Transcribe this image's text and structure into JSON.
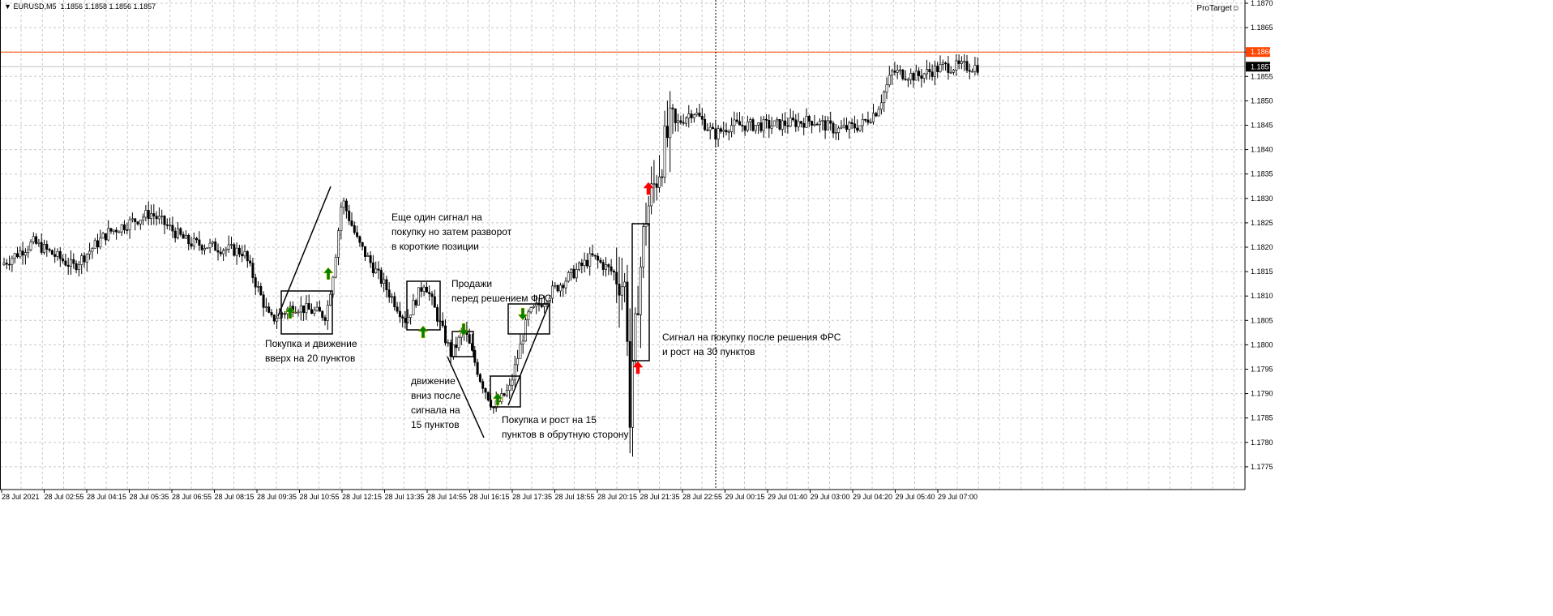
{
  "window": {
    "title": "EURUSD,M5",
    "ohlc": "1.1856 1.1858 1.1856 1.1857",
    "indicator_label": "ProTarget",
    "indicator_icon": "smiley-icon"
  },
  "chart_data": {
    "type": "candlestick",
    "symbol": "EURUSD",
    "timeframe": "M5",
    "ylim": [
      1.1772,
      1.1871
    ],
    "grid": true,
    "y_ticks": [
      "1.1870",
      "1.1865",
      "1.1860",
      "1.1855",
      "1.1850",
      "1.1845",
      "1.1840",
      "1.1835",
      "1.1830",
      "1.1825",
      "1.1820",
      "1.1815",
      "1.1810",
      "1.1805",
      "1.1800",
      "1.1795",
      "1.1790",
      "1.1785",
      "1.1780",
      "1.1775"
    ],
    "x_ticks": [
      "28 Jul 2021",
      "28 Jul 02:55",
      "28 Jul 04:15",
      "28 Jul 05:35",
      "28 Jul 06:55",
      "28 Jul 08:15",
      "28 Jul 09:35",
      "28 Jul 10:55",
      "28 Jul 12:15",
      "28 Jul 13:35",
      "28 Jul 14:55",
      "28 Jul 16:15",
      "28 Jul 17:35",
      "28 Jul 18:55",
      "28 Jul 20:15",
      "28 Jul 21:35",
      "28 Jul 22:55",
      "29 Jul 00:15",
      "29 Jul 01:40",
      "29 Jul 03:00",
      "29 Jul 04:20",
      "29 Jul 05:40",
      "29 Jul 07:00"
    ],
    "price_lines": [
      {
        "label": "1.1860",
        "value": 1.186,
        "color": "#ff4500"
      },
      {
        "label": "1.1857",
        "value": 1.1857,
        "color": "#c0c0c0"
      }
    ],
    "approx_close": [
      {
        "time": "28 Jul 00:00",
        "price": 1.18164
      },
      {
        "time": "28 Jul 02:10",
        "price": 1.1821
      },
      {
        "time": "28 Jul 03:50",
        "price": 1.1816
      },
      {
        "time": "28 Jul 04:55",
        "price": 1.1823
      },
      {
        "time": "28 Jul 06:15",
        "price": 1.1827
      },
      {
        "time": "28 Jul 07:25",
        "price": 1.1821
      },
      {
        "time": "28 Jul 09:10",
        "price": 1.1819
      },
      {
        "time": "28 Jul 10:00",
        "price": 1.1805
      },
      {
        "time": "28 Jul 10:45",
        "price": 1.1808
      },
      {
        "time": "28 Jul 11:45",
        "price": 1.1806
      },
      {
        "time": "28 Jul 12:00",
        "price": 1.1816
      },
      {
        "time": "28 Jul 12:15",
        "price": 1.183
      },
      {
        "time": "28 Jul 12:45",
        "price": 1.1821
      },
      {
        "time": "28 Jul 13:30",
        "price": 1.1813
      },
      {
        "time": "28 Jul 14:15",
        "price": 1.1805
      },
      {
        "time": "28 Jul 14:50",
        "price": 1.1813
      },
      {
        "time": "28 Jul 15:20",
        "price": 1.1804
      },
      {
        "time": "28 Jul 15:40",
        "price": 1.1798
      },
      {
        "time": "28 Jul 16:05",
        "price": 1.1803
      },
      {
        "time": "28 Jul 16:35",
        "price": 1.1793
      },
      {
        "time": "28 Jul 17:00",
        "price": 1.1787
      },
      {
        "time": "28 Jul 17:30",
        "price": 1.1791
      },
      {
        "time": "28 Jul 18:05",
        "price": 1.1806
      },
      {
        "time": "28 Jul 18:50",
        "price": 1.1811
      },
      {
        "time": "28 Jul 20:05",
        "price": 1.1818
      },
      {
        "time": "28 Jul 20:55",
        "price": 1.1814
      },
      {
        "time": "28 Jul 21:10",
        "price": 1.1811
      },
      {
        "time": "28 Jul 21:15",
        "price": 1.1781
      },
      {
        "time": "28 Jul 21:30",
        "price": 1.1809
      },
      {
        "time": "28 Jul 21:45",
        "price": 1.1826
      },
      {
        "time": "28 Jul 22:10",
        "price": 1.1836
      },
      {
        "time": "28 Jul 22:30",
        "price": 1.1844
      },
      {
        "time": "28 Jul 23:15",
        "price": 1.1848
      },
      {
        "time": "28 Jul 23:55",
        "price": 1.1843
      },
      {
        "time": "29 Jul 00:25",
        "price": 1.1845
      },
      {
        "time": "29 Jul 01:50",
        "price": 1.1845
      },
      {
        "time": "29 Jul 03:05",
        "price": 1.1846
      },
      {
        "time": "29 Jul 03:50",
        "price": 1.1844
      },
      {
        "time": "29 Jul 04:35",
        "price": 1.1845
      },
      {
        "time": "29 Jul 05:05",
        "price": 1.1848
      },
      {
        "time": "29 Jul 05:35",
        "price": 1.1856
      },
      {
        "time": "29 Jul 06:20",
        "price": 1.1855
      },
      {
        "time": "29 Jul 07:10",
        "price": 1.1857
      },
      {
        "time": "29 Jul 08:15",
        "price": 1.1857
      }
    ],
    "annotations": [
      {
        "text": [
          "Покупка и движение",
          "вверх на 20 пунктов"
        ]
      },
      {
        "text": [
          "Еще один сигнал на",
          "покупку но затем разворот",
          "в короткие позиции"
        ]
      },
      {
        "text": [
          "Продажи",
          "перед решением ФРС"
        ]
      },
      {
        "text": [
          "движение",
          "вниз после",
          "сигнала на",
          "15 пунктов"
        ]
      },
      {
        "text": [
          "Покупка и рост на 15",
          "пунктов в обрутную сторону"
        ]
      },
      {
        "text": [
          "Сигнал на покупку после решения ФРС",
          "и рост на 30 пунктов"
        ]
      }
    ],
    "signal_colors": {
      "buy": "#008000",
      "sell_green": "#008000",
      "fed_buy": "#ff0000"
    }
  }
}
